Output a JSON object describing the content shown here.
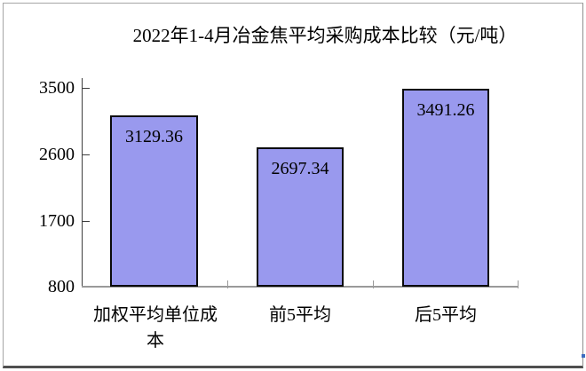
{
  "title": {
    "text": "2022年1-4月冶金焦平均采购成本比较（元/吨）"
  },
  "y_axis": {
    "tick_labels": [
      "3500",
      "2600",
      "1700",
      "800"
    ]
  },
  "x_axis": {
    "display_labels": [
      "加权平均单位成\n本",
      "前5平均",
      "后5平均"
    ]
  },
  "bars": {
    "value_labels": [
      "3129.36",
      "2697.34",
      "3491.26"
    ]
  },
  "colors": {
    "bar_fill": "#9999ee",
    "bar_border": "#0a0a0a",
    "y_axis_line": "#3d3d3d",
    "x_axis_line": "#9a9a9a",
    "frame_border": "#a6a6a6",
    "frame_bottom_border": "#4f4f4f",
    "handle_dot": "#3d6cc0",
    "text": "#000000",
    "background": "#ffffff"
  },
  "chart_data": {
    "type": "bar",
    "title": "2022年1-4月冶金焦平均采购成本比较（元/吨）",
    "categories": [
      "加权平均单位成本",
      "前5平均",
      "后5平均"
    ],
    "values": [
      3129.36,
      2697.34,
      3491.26
    ],
    "value_labels": [
      "3129.36",
      "2697.34",
      "3491.26"
    ],
    "xlabel": "",
    "ylabel": "",
    "unit": "元/吨",
    "ylim": [
      800,
      3500
    ],
    "yticks": [
      3500,
      2600,
      1700,
      800
    ],
    "ytick_interval": 900,
    "grid": false,
    "legend": "none",
    "bar_label_position": "inside-top"
  }
}
